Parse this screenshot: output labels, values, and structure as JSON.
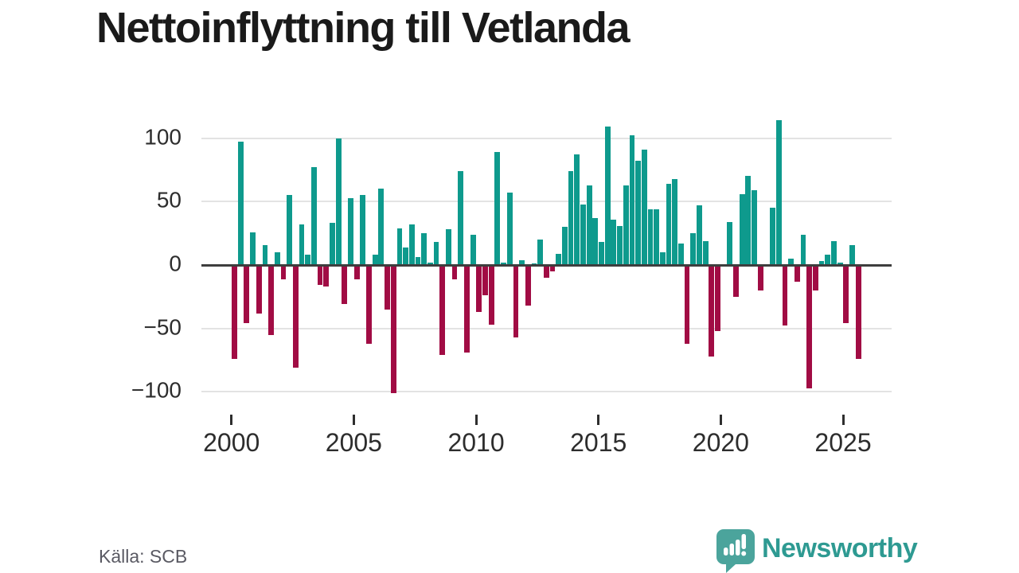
{
  "title": "Nettoinflyttning till Vetlanda",
  "source": "Källa: SCB",
  "brand": {
    "name": "Newsworthy",
    "icon": "speech-bubble-bar-chart-icon",
    "text_color": "#2e9a92",
    "icon_color": "#4ba49c"
  },
  "colors": {
    "positive_bar": "#0e9a8d",
    "negative_bar": "#a10c44",
    "gridline": "#e3e3e3",
    "zero_line": "#3e3e3e",
    "axis_text": "#2d2d2d",
    "title_text": "#1a1a1a",
    "source_text": "#5a5a63"
  },
  "chart_data": {
    "type": "bar",
    "title": "Nettoinflyttning till Vetlanda",
    "frequency": "quarterly",
    "x_start": "2000 Q1",
    "x_end": "2025 Q3",
    "values": [
      -74,
      97,
      -46,
      26,
      -38,
      16,
      -55,
      10,
      -11,
      55,
      -81,
      32,
      8,
      77,
      -16,
      -17,
      33,
      100,
      -31,
      53,
      -11,
      55,
      -62,
      8,
      60,
      -35,
      -101,
      29,
      14,
      32,
      6,
      25,
      2,
      18,
      -71,
      28,
      -11,
      74,
      -69,
      24,
      -37,
      -24,
      -47,
      89,
      2,
      57,
      -57,
      4,
      -32,
      1,
      20,
      -10,
      -5,
      9,
      30,
      74,
      87,
      48,
      63,
      37,
      18,
      109,
      36,
      31,
      63,
      102,
      82,
      91,
      44,
      44,
      10,
      64,
      68,
      17,
      -62,
      25,
      47,
      19,
      -72,
      -52,
      0,
      34,
      -25,
      56,
      70,
      59,
      -20,
      0,
      45,
      114,
      -48,
      5,
      -13,
      24,
      -97,
      -20,
      3,
      8,
      19,
      2,
      -46,
      16,
      -74
    ],
    "y_tick_values": [
      100,
      50,
      0,
      -50,
      -100
    ],
    "y_tick_labels": [
      "100",
      "50",
      "0",
      "−50",
      "−100"
    ],
    "x_tick_years": [
      2000,
      2005,
      2010,
      2015,
      2020,
      2025
    ],
    "x_tick_labels": [
      "2000",
      "2005",
      "2010",
      "2015",
      "2020",
      "2025"
    ],
    "ylim": [
      -110,
      120
    ],
    "grid": "horizontal",
    "legend": "none"
  }
}
